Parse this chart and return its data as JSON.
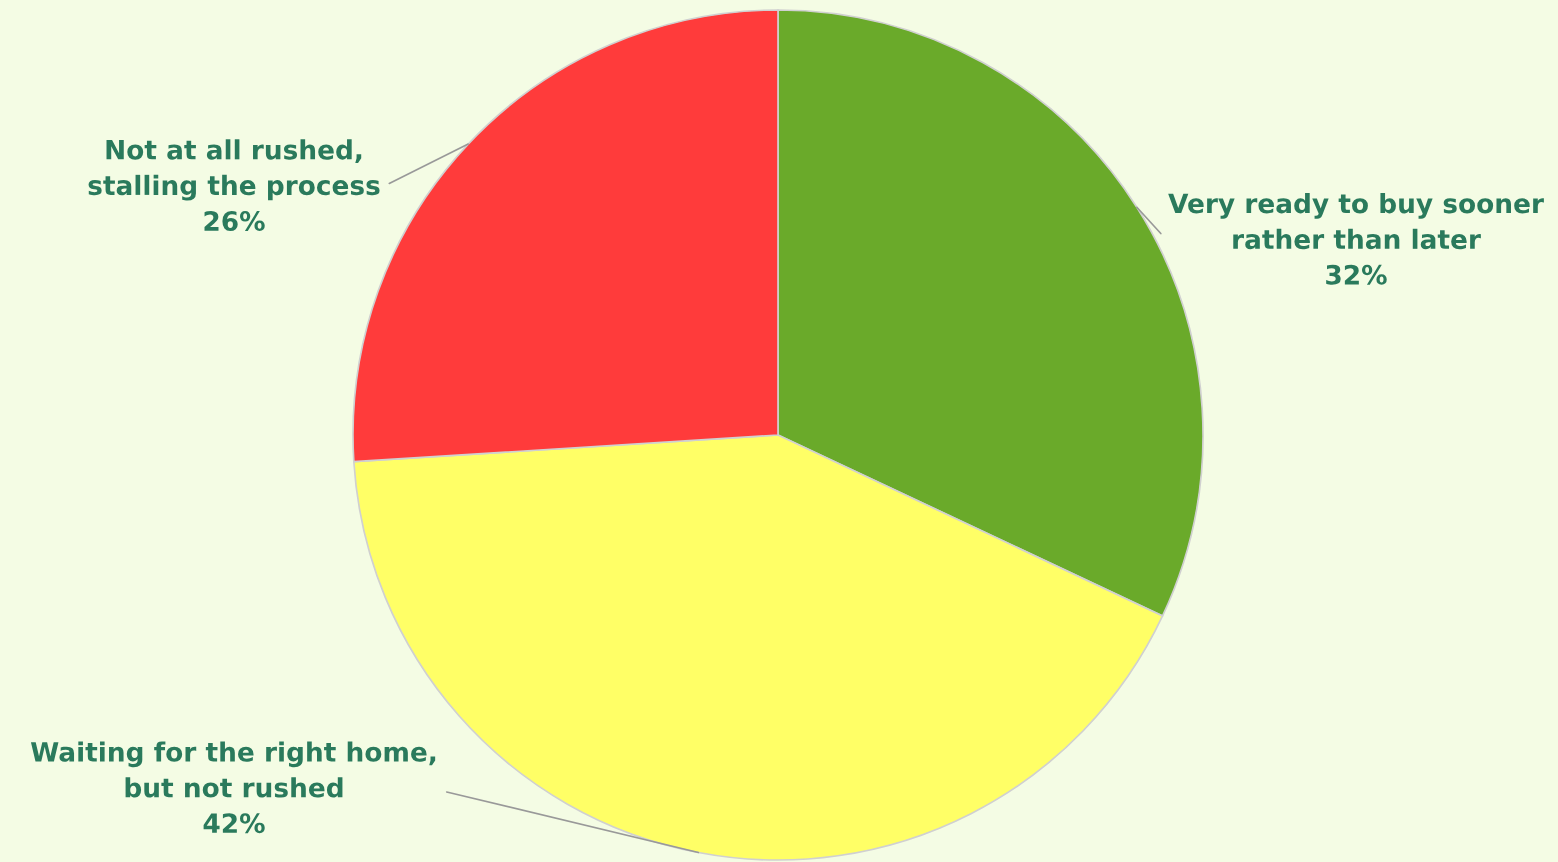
{
  "chart_data": {
    "type": "pie",
    "categories": [
      "Very ready to buy sooner\nrather than later",
      "Waiting for the right home,\nbut not rushed",
      "Not at all rushed,\nstalling the process"
    ],
    "values": [
      32,
      42,
      26
    ],
    "value_labels": [
      "32%",
      "42%",
      "26%"
    ],
    "colors": [
      "#6aaa2a",
      "#ffff66",
      "#ff3b3b"
    ],
    "legend": false
  }
}
